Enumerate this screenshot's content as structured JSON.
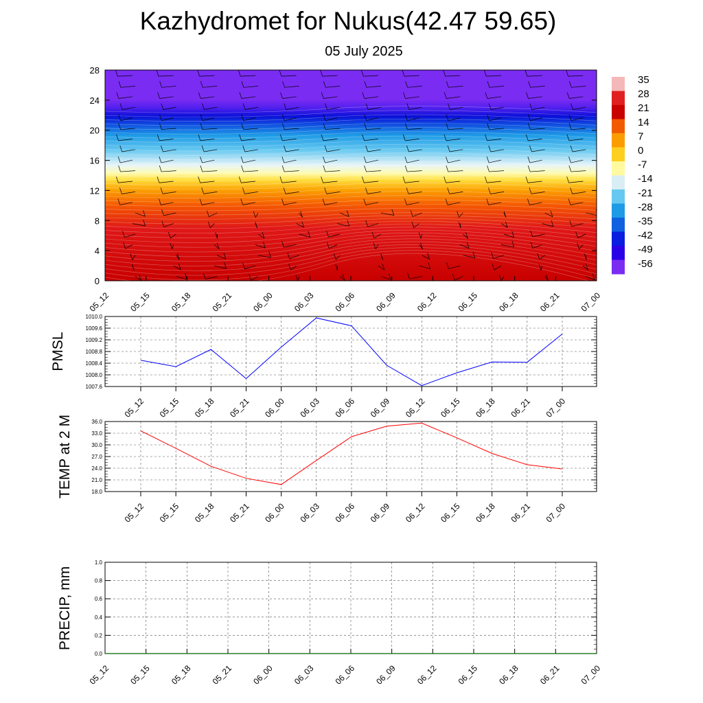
{
  "title": "Kazhydromet for Nukus(42.47 59.65)",
  "subtitle": "05 July 2025",
  "time_labels": [
    "05_12",
    "05_15",
    "05_18",
    "05_21",
    "06_00",
    "06_03",
    "06_06",
    "06_09",
    "06_12",
    "06_15",
    "06_18",
    "06_21",
    "07_00"
  ],
  "chart_data": [
    {
      "type": "heatmap",
      "title": "",
      "yticks": [
        0,
        4,
        8,
        12,
        16,
        20,
        24,
        28
      ],
      "ylim": [
        0,
        28
      ],
      "colorbar": {
        "labels": [
          "35",
          "28",
          "21",
          "14",
          "7",
          "0",
          "-7",
          "-14",
          "-21",
          "-28",
          "-35",
          "-42",
          "-49",
          "-56"
        ],
        "colors": [
          "#f4b8b8",
          "#e02020",
          "#c80000",
          "#f25a00",
          "#fb9c00",
          "#fdd020",
          "#fffaa0",
          "#d8eef4",
          "#66c8f0",
          "#1e9be6",
          "#1060e0",
          "#0a1ee0",
          "#2a00e6",
          "#7b2cf2"
        ]
      },
      "note_colors": {
        "top_band": "#7b2cf2",
        "deep_blue": "#0a1ee0",
        "mid_blue": "#1e9be6",
        "light_blue": "#66c8f0",
        "pale": "#e6f4f8",
        "yellow": "#fff060",
        "orange": "#fb9c00",
        "red": "#e02020",
        "dark_red": "#c80000",
        "warm_core": "#f4a0a0"
      }
    },
    {
      "type": "line",
      "ylabel": "PMSL",
      "ylim": [
        1007.6,
        1010.0
      ],
      "yticks": [
        "1010.0",
        "1009.6",
        "1009.2",
        "1008.8",
        "1008.4",
        "1008.0",
        "1007.6"
      ],
      "series": [
        {
          "color": "#0000ff",
          "values": [
            1008.5,
            1008.28,
            1008.87,
            1007.87,
            1008.95,
            1009.95,
            1009.68,
            1008.33,
            1007.63,
            1008.07,
            1008.44,
            1008.43,
            1009.4
          ]
        }
      ]
    },
    {
      "type": "line",
      "ylabel": "TEMP at 2 M",
      "ylim": [
        18.0,
        36.0
      ],
      "yticks": [
        "36.0",
        "33.0",
        "30.0",
        "27.0",
        "24.0",
        "21.0",
        "18.0"
      ],
      "series": [
        {
          "color": "#ff0000",
          "values": [
            33.6,
            29.1,
            24.5,
            21.4,
            19.8,
            26.0,
            32.1,
            34.8,
            35.6,
            31.8,
            27.8,
            24.9,
            23.8
          ]
        }
      ]
    },
    {
      "type": "line",
      "ylabel": "PRECIP, mm",
      "ylim": [
        0.0,
        1.0
      ],
      "yticks": [
        "1.0",
        "0.8",
        "0.6",
        "0.4",
        "0.2",
        "0.0"
      ],
      "series": [
        {
          "color": "#006400",
          "values": [
            0,
            0,
            0,
            0,
            0,
            0,
            0,
            0,
            0,
            0,
            0,
            0,
            0
          ]
        }
      ]
    }
  ]
}
